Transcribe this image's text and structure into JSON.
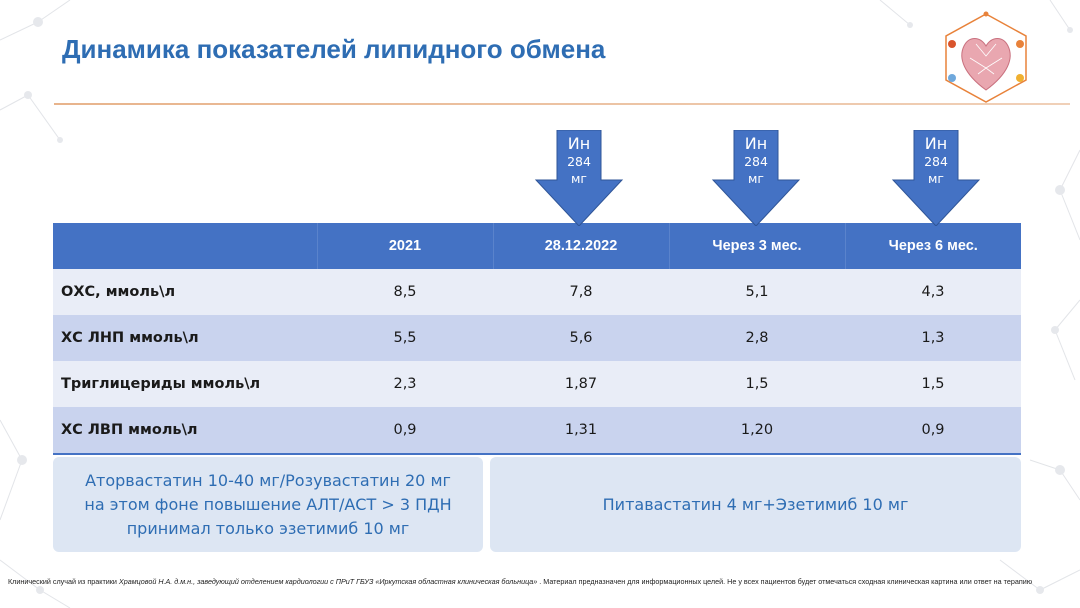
{
  "title": "Динамика показателей липидного обмена",
  "arrows": [
    {
      "line1": "Ин",
      "line2": "284",
      "line3": "мг"
    },
    {
      "line1": "Ин",
      "line2": "284",
      "line3": "мг"
    },
    {
      "line1": "Ин",
      "line2": "284",
      "line3": "мг"
    }
  ],
  "table": {
    "headers": [
      "",
      "2021",
      "28.12.2022",
      "Через 3 мес.",
      "Через 6 мес."
    ],
    "rows": [
      {
        "label": "ОХС, ммоль\\л",
        "values": [
          "8,5",
          "7,8",
          "5,1",
          "4,3"
        ]
      },
      {
        "label": "ХС ЛНП ммоль\\л",
        "values": [
          "5,5",
          "5,6",
          "2,8",
          "1,3"
        ]
      },
      {
        "label": "Триглицериды ммоль\\л",
        "values": [
          "2,3",
          "1,87",
          "1,5",
          "1,5"
        ]
      },
      {
        "label": "ХС ЛВП ммоль\\л",
        "values": [
          "0,9",
          "1,31",
          "1,20",
          "0,9"
        ]
      }
    ]
  },
  "notes": {
    "left": [
      "Аторвастатин 10-40 мг/Розувастатин 20 мг",
      "на этом фоне повышение АЛТ/АСТ > 3 ПДН",
      "принимал только эзетимиб 10 мг"
    ],
    "right": "Питавастатин 4 мг+Эзетимиб 10 мг"
  },
  "footer": {
    "prefix": "Клинический случай из практики ",
    "italic": "Храмцовой Н.А. д.м.н., заведующий отделением кардиологии с ПРиТ ГБУЗ «Иркутская областная клиническая больница»",
    "suffix": " . Материал предназначен для информационных целей. Не у всех пациентов будет отмечаться сходная клиническая картина или ответ на терапию"
  },
  "colors": {
    "title": "#2e6db3",
    "header_bg": "#4472c4",
    "row_light": "#e9edf7",
    "row_dark": "#c9d3ee",
    "note_bg": "#dde6f3",
    "logo_accent": "#e8823a"
  }
}
